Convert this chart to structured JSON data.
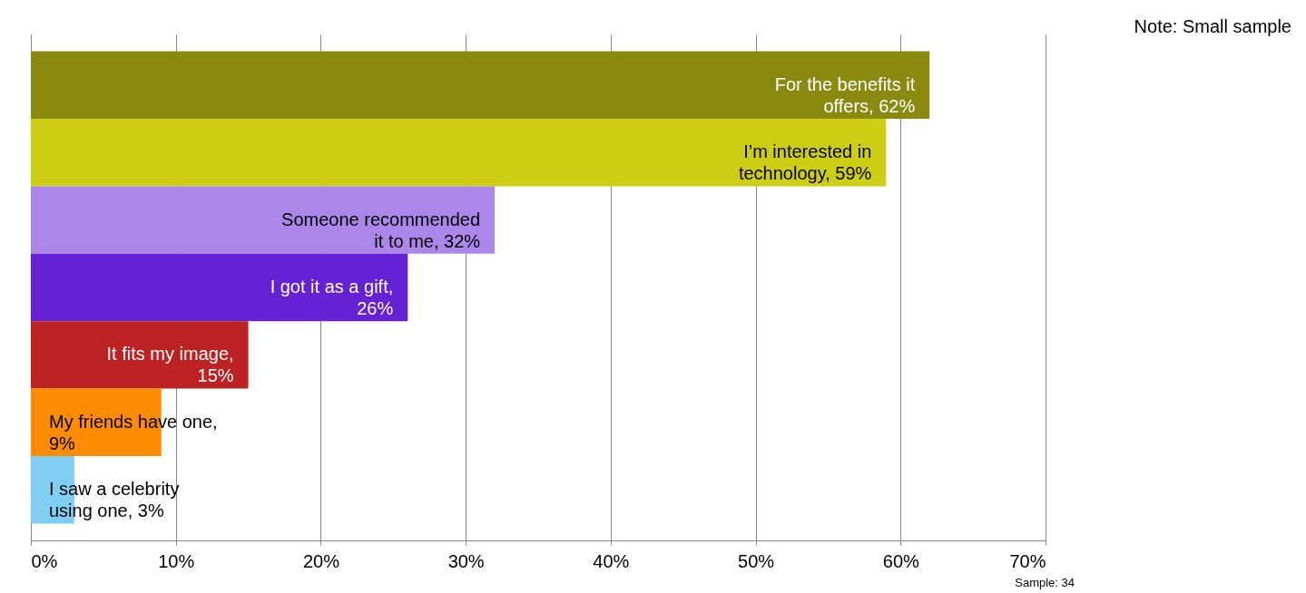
{
  "chart_data": {
    "type": "bar",
    "orientation": "horizontal",
    "categories": [
      null,
      null,
      null,
      null,
      null,
      null,
      null
    ],
    "values": [
      62,
      59,
      32,
      26,
      15,
      9,
      3
    ],
    "colors": [
      "#8a8a10",
      "#cdcd14",
      "#ab87ea",
      "#6521d4",
      "#bc2222",
      "#ff8c00",
      "#7fcff5"
    ],
    "value_labels": [
      "For the benefits it offers, 62%",
      "I’m interested in technology, 59%",
      "Someone recommended it to me, 32%",
      "I got it as a gift, 26%",
      "It fits my image, 15%",
      "My friends have one, 9%",
      "I saw a celebrity using one, 3%"
    ],
    "xlim": [
      0,
      70
    ],
    "xticks": [
      {
        "value": 0,
        "label": "0%"
      },
      {
        "value": 10,
        "label": "10%"
      },
      {
        "value": 20,
        "label": "20%"
      },
      {
        "value": 30,
        "label": "30%"
      },
      {
        "value": 40,
        "label": "40%"
      },
      {
        "value": 50,
        "label": "50%"
      },
      {
        "value": 60,
        "label": "60%"
      },
      {
        "value": 70,
        "label": "70%"
      }
    ],
    "grid": "x",
    "legend": false,
    "tick_labels": "x",
    "annotations": [
      "Note: Small sample",
      "Sample: 34"
    ]
  }
}
